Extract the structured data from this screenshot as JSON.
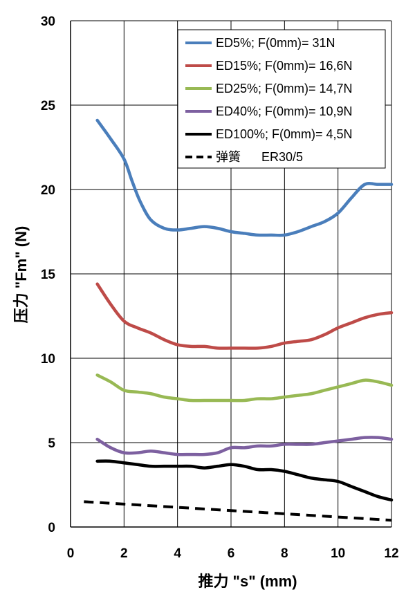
{
  "chart_data": {
    "type": "line",
    "xlabel": "推力 \"s\" (mm)",
    "ylabel": "压力 \"Fm\" (N)",
    "xlim": [
      0,
      12
    ],
    "ylim": [
      0,
      30
    ],
    "x_ticks": [
      "0",
      "2",
      "4",
      "6",
      "8",
      "10",
      "12"
    ],
    "y_ticks": [
      "0",
      "5",
      "10",
      "15",
      "20",
      "25",
      "30"
    ],
    "grid": true,
    "legend_position": "top-right",
    "series": [
      {
        "name": "ED5%; F(0mm)= 31N",
        "color": "#4a7ebb",
        "style": "solid",
        "x": [
          1,
          1.5,
          2,
          2.3,
          2.6,
          3,
          3.5,
          4,
          4.5,
          5,
          5.5,
          6,
          6.5,
          7,
          7.5,
          8,
          8.5,
          9,
          9.5,
          10,
          10.5,
          11,
          11.5,
          12
        ],
        "y": [
          24.1,
          23.0,
          21.8,
          20.5,
          19.3,
          18.2,
          17.7,
          17.6,
          17.7,
          17.8,
          17.7,
          17.5,
          17.4,
          17.3,
          17.3,
          17.3,
          17.5,
          17.8,
          18.1,
          18.6,
          19.5,
          20.3,
          20.3,
          20.3
        ]
      },
      {
        "name": "ED15%; F(0mm)= 16,6N",
        "color": "#be4b48",
        "style": "solid",
        "x": [
          1,
          1.5,
          2,
          2.5,
          3,
          3.5,
          4,
          4.5,
          5,
          5.5,
          6,
          6.5,
          7,
          7.5,
          8,
          8.5,
          9,
          9.5,
          10,
          10.5,
          11,
          11.5,
          12
        ],
        "y": [
          14.4,
          13.2,
          12.2,
          11.8,
          11.5,
          11.1,
          10.8,
          10.7,
          10.7,
          10.6,
          10.6,
          10.6,
          10.6,
          10.7,
          10.9,
          11.0,
          11.1,
          11.4,
          11.8,
          12.1,
          12.4,
          12.6,
          12.7
        ]
      },
      {
        "name": "ED25%; F(0mm)= 14,7N",
        "color": "#98b954",
        "style": "solid",
        "x": [
          1,
          1.5,
          2,
          2.5,
          3,
          3.5,
          4,
          4.5,
          5,
          5.5,
          6,
          6.5,
          7,
          7.5,
          8,
          8.5,
          9,
          9.5,
          10,
          10.5,
          11,
          11.5,
          12
        ],
        "y": [
          9.0,
          8.6,
          8.1,
          8.0,
          7.9,
          7.7,
          7.6,
          7.5,
          7.5,
          7.5,
          7.5,
          7.5,
          7.6,
          7.6,
          7.7,
          7.8,
          7.9,
          8.1,
          8.3,
          8.5,
          8.7,
          8.6,
          8.4
        ]
      },
      {
        "name": "ED40%; F(0mm)= 10,9N",
        "color": "#7d60a0",
        "style": "solid",
        "x": [
          1,
          1.5,
          2,
          2.5,
          3,
          3.5,
          4,
          4.5,
          5,
          5.5,
          6,
          6.5,
          7,
          7.5,
          8,
          8.5,
          9,
          9.5,
          10,
          10.5,
          11,
          11.5,
          12
        ],
        "y": [
          5.2,
          4.7,
          4.4,
          4.4,
          4.5,
          4.4,
          4.3,
          4.3,
          4.3,
          4.4,
          4.7,
          4.7,
          4.8,
          4.8,
          4.9,
          4.9,
          4.9,
          5.0,
          5.1,
          5.2,
          5.3,
          5.3,
          5.2
        ]
      },
      {
        "name": "ED100%; F(0mm)= 4,5N",
        "color": "#000000",
        "style": "solid",
        "x": [
          1,
          1.5,
          2,
          2.5,
          3,
          3.5,
          4,
          4.5,
          5,
          5.5,
          6,
          6.5,
          7,
          7.5,
          8,
          8.5,
          9,
          9.5,
          10,
          10.5,
          11,
          11.5,
          12
        ],
        "y": [
          3.9,
          3.9,
          3.8,
          3.7,
          3.6,
          3.6,
          3.6,
          3.6,
          3.5,
          3.6,
          3.7,
          3.6,
          3.4,
          3.4,
          3.3,
          3.1,
          2.9,
          2.8,
          2.7,
          2.4,
          2.1,
          1.8,
          1.6
        ]
      },
      {
        "name": "弹簧      ER30/5",
        "color": "#000000",
        "style": "dashed",
        "x": [
          0.5,
          12
        ],
        "y": [
          1.5,
          0.4
        ]
      }
    ]
  }
}
